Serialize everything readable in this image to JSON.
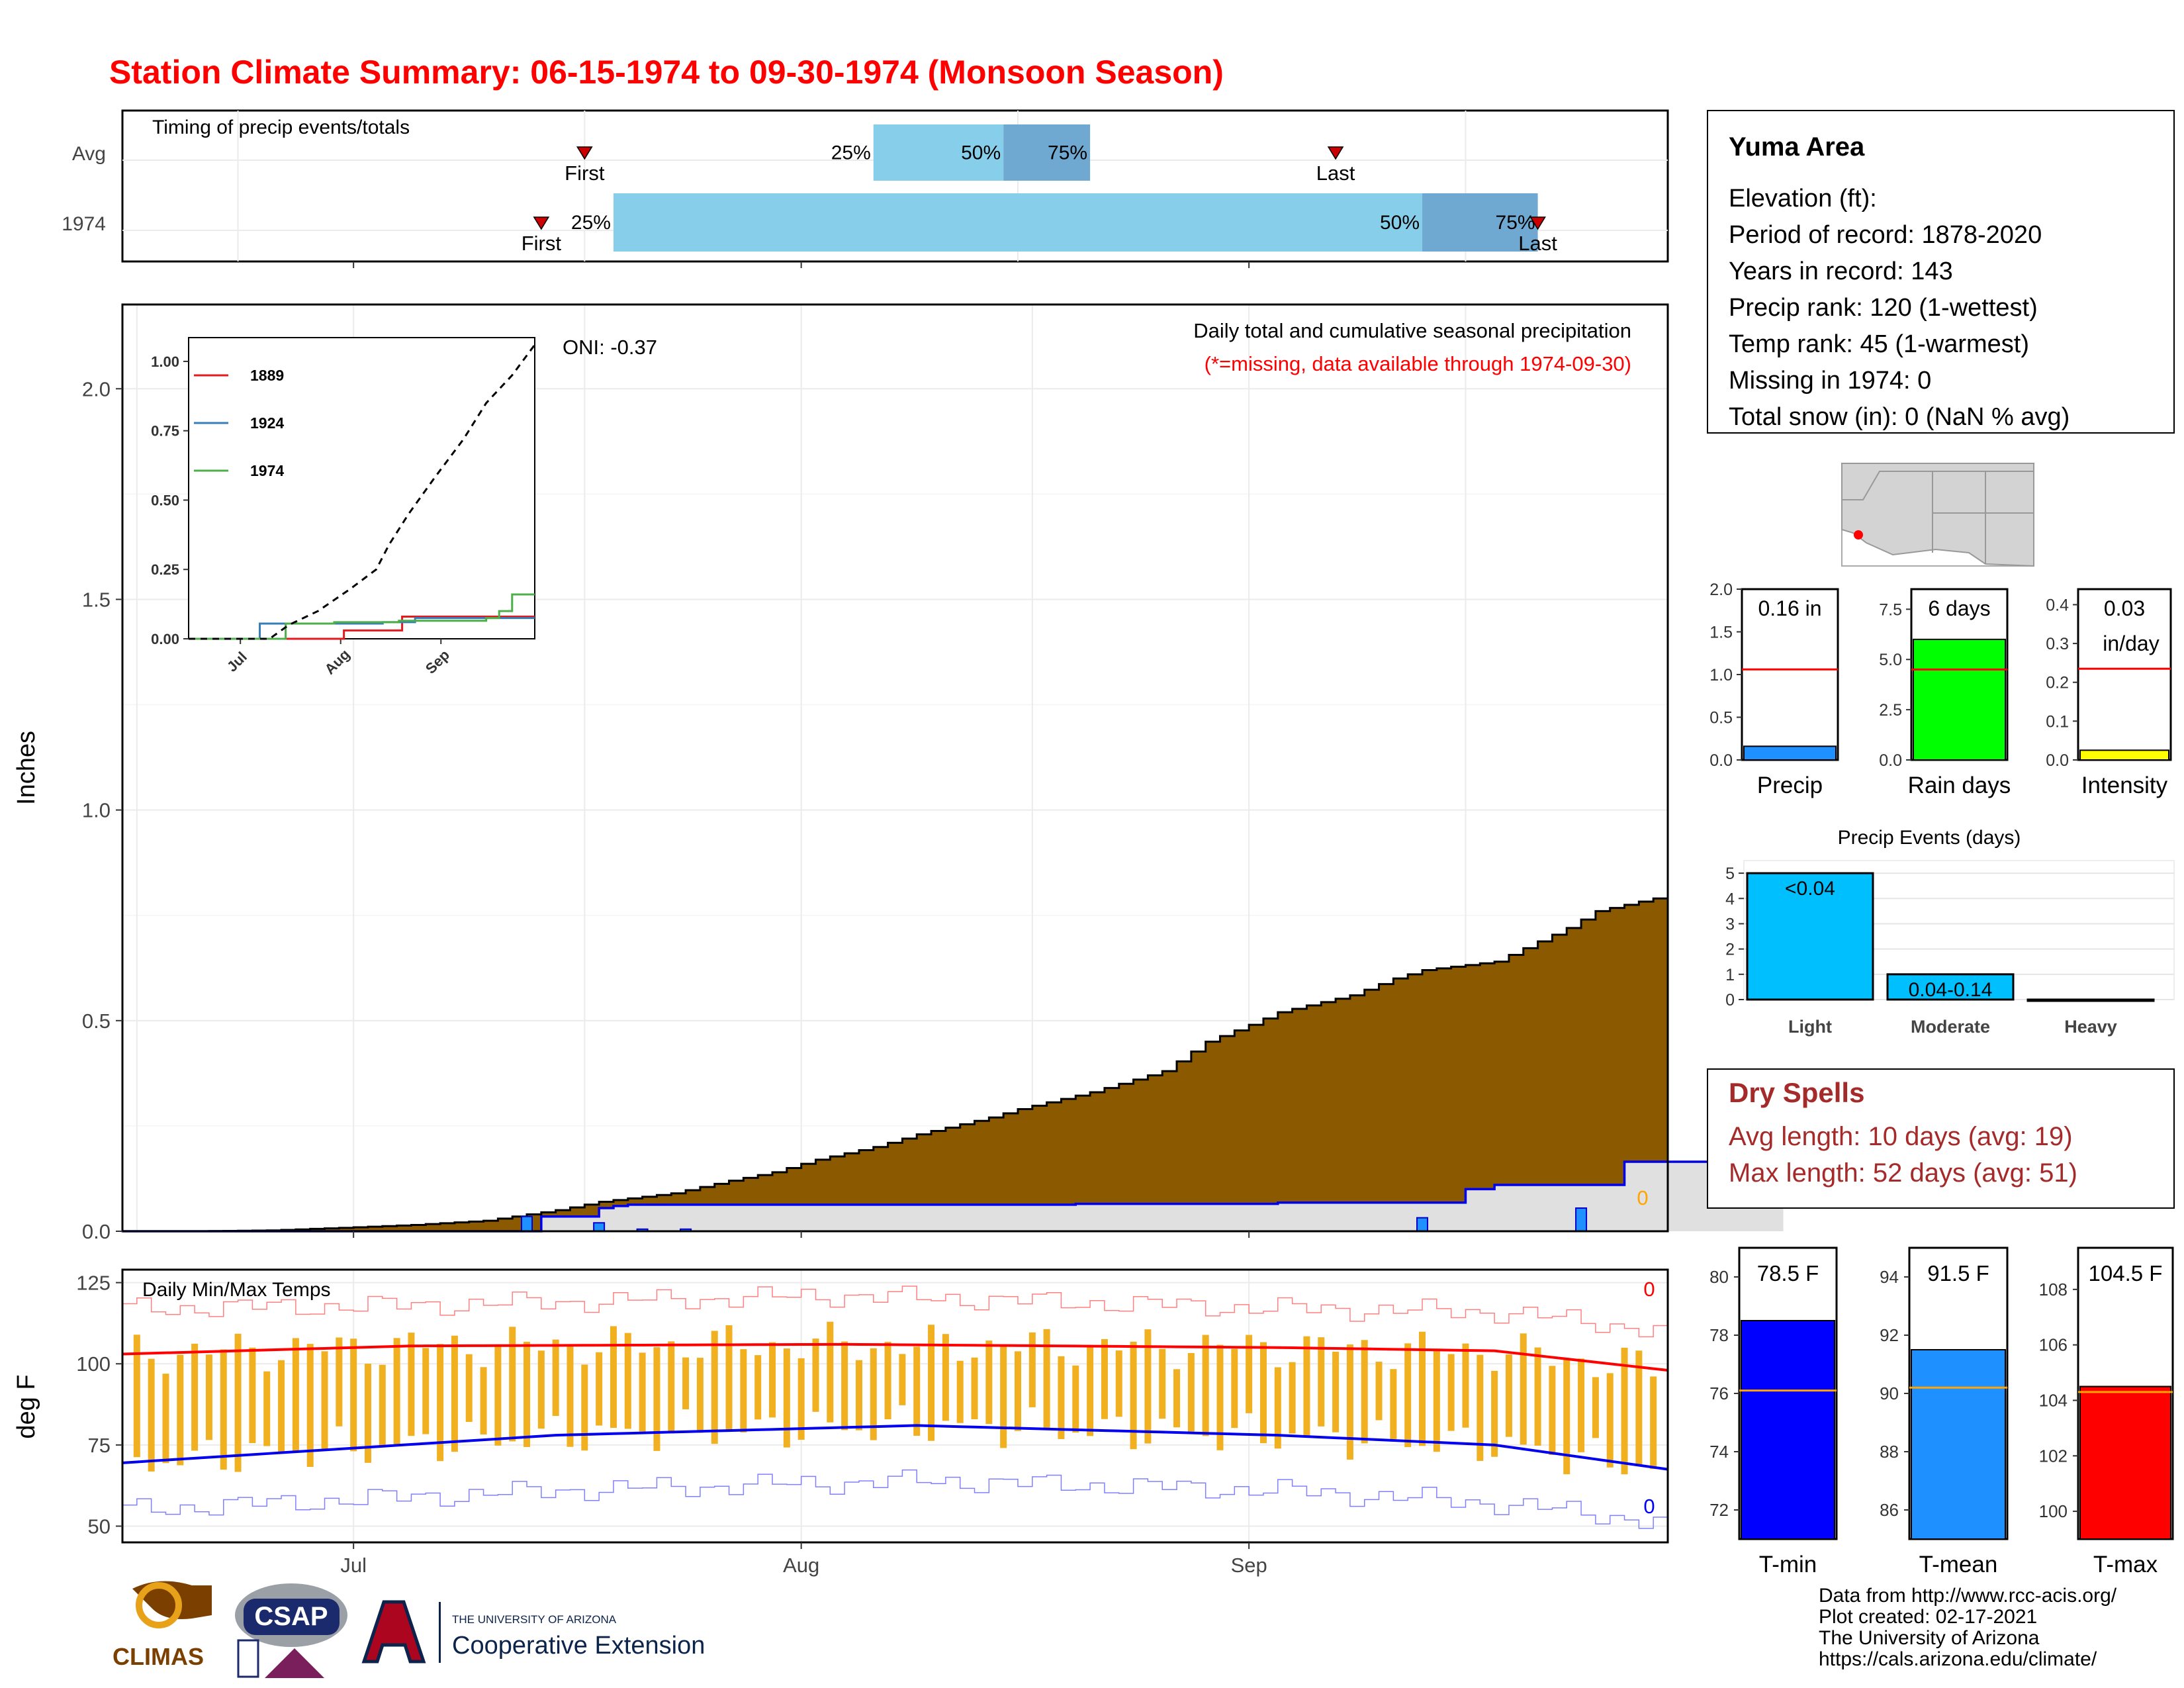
{
  "title": "Station Climate Summary: 06-15-1974 to 09-30-1974 (Monsoon Season)",
  "colors": {
    "title": "#ff0000",
    "brown": "#8B5A00",
    "light_blue": "#87CEEB",
    "mid_blue": "#6FA8D0",
    "orange_bar": "#F0B020",
    "tmax_line": "#ff0000",
    "tmin_line": "#0000ee",
    "dry_spell_text": "#A52A2A",
    "rain_green": "#00ff00",
    "intensity_yellow": "#ffff00",
    "event_cyan": "#00BFFF"
  },
  "x_months": [
    "Jul",
    "Aug",
    "Sep"
  ],
  "timing": {
    "label": "Timing of precip events/totals",
    "rows": [
      "Avg",
      "1974"
    ],
    "avg": {
      "first_day": 32,
      "q25_day": 52,
      "q50_day": 61,
      "q75_day": 67,
      "last_day": 84
    },
    "y1974": {
      "first_day": 29,
      "q25_day": 34,
      "q50_day": 90,
      "q75_day": 98,
      "last_day": 98
    },
    "labels": {
      "first": "First",
      "last": "Last",
      "p25": "25%",
      "p50": "50%",
      "p75": "75%"
    }
  },
  "info": {
    "station": "Yuma Area",
    "lines": [
      "Elevation (ft):",
      "Period of record: 1878-2020",
      "Years in record: 143",
      "Precip rank: 120 (1-wettest)",
      "Temp rank: 45 (1-warmest)",
      "Missing in 1974: 0",
      "Total snow (in): 0 (NaN % avg)"
    ]
  },
  "main": {
    "ylabel": "Inches",
    "header": "Daily total and cumulative seasonal precipitation",
    "subheader": "(*=missing, data available through 1974-09-30)",
    "oni": "ONI: -0.37",
    "zero_label": "0",
    "yticks": [
      "0.0",
      "0.5",
      "1.0",
      "1.5",
      "2.0"
    ]
  },
  "inset": {
    "yticks": [
      "0.00",
      "0.25",
      "0.50",
      "0.75",
      "1.00"
    ],
    "xticks": [
      "Jul",
      "Aug",
      "Sep"
    ],
    "legend": [
      {
        "name": "1889",
        "color": "#e41a1c"
      },
      {
        "name": "1924",
        "color": "#377eb8"
      },
      {
        "name": "1974",
        "color": "#4daf4a"
      }
    ]
  },
  "temps": {
    "label": "Daily Min/Max Temps",
    "ylabel": "deg F",
    "yticks": [
      "50",
      "75",
      "100",
      "125"
    ],
    "max_missing": "0",
    "min_missing": "0"
  },
  "mini_bars": [
    {
      "name": "Precip",
      "value_label": "0.16 in",
      "value": 0.16,
      "avg": 1.06,
      "ymax": 2.0,
      "ticks": [
        "0.0",
        "0.5",
        "1.0",
        "1.5",
        "2.0"
      ],
      "color": "#1E90FF"
    },
    {
      "name": "Rain days",
      "value_label": "6 days",
      "value": 6,
      "avg": 4.5,
      "ymax": 8.5,
      "ticks": [
        "0.0",
        "2.5",
        "5.0",
        "7.5"
      ],
      "color": "#00ff00"
    },
    {
      "name": "Intensity",
      "value_label": "0.03",
      "value_label2": "in/day",
      "value": 0.025,
      "avg": 0.235,
      "ymax": 0.44,
      "ticks": [
        "0.0",
        "0.1",
        "0.2",
        "0.3",
        "0.4"
      ],
      "color": "#ffff00"
    }
  ],
  "events": {
    "title": "Precip Events (days)",
    "categories": [
      "Light",
      "Moderate",
      "Heavy"
    ],
    "values": [
      5,
      1,
      0
    ],
    "labels": [
      "<0.04",
      "0.04-0.14",
      ""
    ],
    "yticks": [
      "0",
      "1",
      "2",
      "3",
      "4",
      "5"
    ]
  },
  "dry_spells": {
    "title": "Dry Spells",
    "avg_line": "Avg length: 10 days (avg: 19)",
    "max_line": "Max length: 52 days (avg: 51)"
  },
  "temp_bars": [
    {
      "name": "T-min",
      "value_label": "78.5 F",
      "value": 78.5,
      "avg": 76.1,
      "ymin": 71,
      "ymax": 81,
      "ticks": [
        "72",
        "74",
        "76",
        "78",
        "80"
      ],
      "color": "#0000ff"
    },
    {
      "name": "T-mean",
      "value_label": "91.5 F",
      "value": 91.5,
      "avg": 90.2,
      "ymin": 85,
      "ymax": 95,
      "ticks": [
        "86",
        "88",
        "90",
        "92",
        "94"
      ],
      "color": "#1E90FF"
    },
    {
      "name": "T-max",
      "value_label": "104.5 F",
      "value": 104.5,
      "avg": 104.3,
      "ymin": 99,
      "ymax": 109.5,
      "ticks": [
        "100",
        "102",
        "104",
        "106",
        "108"
      ],
      "color": "#ff0000"
    }
  ],
  "credits": [
    "Data from http://www.rcc-acis.org/",
    "Plot created: 02-17-2021",
    "The University of Arizona",
    "https://cals.arizona.edu/climate/"
  ],
  "logos": {
    "climas": "CLIMAS",
    "csap": "CSAP",
    "ua_small": "THE UNIVERSITY OF ARIZONA",
    "coop": "Cooperative Extension"
  },
  "chart_data": {
    "type": "area",
    "title": "Station Climate Summary: 06-15-1974 to 09-30-1974 (Monsoon Season)",
    "ylabel": "Inches",
    "ylim": [
      0,
      2.2
    ],
    "x_start": "1974-06-15",
    "x_end": "1974-09-30",
    "avg_cumulative": [
      [
        0,
        0
      ],
      [
        5,
        0
      ],
      [
        10,
        0.002
      ],
      [
        15,
        0.008
      ],
      [
        20,
        0.015
      ],
      [
        25,
        0.025
      ],
      [
        30,
        0.05
      ],
      [
        33,
        0.07
      ],
      [
        38,
        0.09
      ],
      [
        42,
        0.12
      ],
      [
        45,
        0.14
      ],
      [
        48,
        0.17
      ],
      [
        52,
        0.2
      ],
      [
        55,
        0.23
      ],
      [
        60,
        0.27
      ],
      [
        62,
        0.29
      ],
      [
        67,
        0.33
      ],
      [
        70,
        0.36
      ],
      [
        72,
        0.38
      ],
      [
        75,
        0.45
      ],
      [
        78,
        0.49
      ],
      [
        80,
        0.52
      ],
      [
        85,
        0.56
      ],
      [
        88,
        0.6
      ],
      [
        90,
        0.62
      ],
      [
        95,
        0.64
      ],
      [
        100,
        0.72
      ],
      [
        102,
        0.76
      ],
      [
        106,
        0.79
      ],
      [
        110,
        0.83
      ],
      [
        115,
        0.86
      ],
      [
        120,
        0.87
      ],
      [
        122,
        0.9
      ],
      [
        125,
        0.92
      ],
      [
        128,
        0.95
      ],
      [
        132,
        0.99
      ],
      [
        135,
        1.01
      ],
      [
        137,
        1.02
      ],
      [
        138,
        1.06
      ]
    ],
    "observed_1974_cumulative": [
      [
        0,
        0
      ],
      [
        28,
        0
      ],
      [
        29,
        0.035
      ],
      [
        33,
        0.055
      ],
      [
        34,
        0.06
      ],
      [
        35,
        0.063
      ],
      [
        40,
        0.063
      ],
      [
        52,
        0.063
      ],
      [
        66,
        0.065
      ],
      [
        80,
        0.068
      ],
      [
        92,
        0.068
      ],
      [
        93,
        0.1
      ],
      [
        95,
        0.11
      ],
      [
        103,
        0.11
      ],
      [
        104,
        0.165
      ],
      [
        115,
        0.165
      ]
    ],
    "daily_1974": [
      [
        28,
        0.035
      ],
      [
        33,
        0.02
      ],
      [
        36,
        0.005
      ],
      [
        39,
        0.005
      ],
      [
        90,
        0.032
      ],
      [
        101,
        0.055
      ]
    ],
    "inset": {
      "series": [
        {
          "name": "1889",
          "values": [
            [
              0,
              0
            ],
            [
              45,
              0
            ],
            [
              48,
              0.03
            ],
            [
              62,
              0.03
            ],
            [
              66,
              0.08
            ],
            [
              100,
              0.08
            ],
            [
              107,
              0.08
            ]
          ]
        },
        {
          "name": "1924",
          "values": [
            [
              0,
              0
            ],
            [
              20,
              0
            ],
            [
              22,
              0.055
            ],
            [
              45,
              0.055
            ],
            [
              60,
              0.06
            ],
            [
              70,
              0.075
            ],
            [
              107,
              0.075
            ]
          ]
        },
        {
          "name": "1974",
          "values": [
            [
              0,
              0
            ],
            [
              28,
              0
            ],
            [
              30,
              0.055
            ],
            [
              45,
              0.06
            ],
            [
              65,
              0.065
            ],
            [
              92,
              0.075
            ],
            [
              96,
              0.1
            ],
            [
              100,
              0.16
            ],
            [
              107,
              0.16
            ]
          ]
        },
        {
          "name": "avg",
          "values": [
            [
              0,
              0
            ],
            [
              25,
              0
            ],
            [
              31,
              0.05
            ],
            [
              40,
              0.1
            ],
            [
              50,
              0.18
            ],
            [
              58,
              0.25
            ],
            [
              62,
              0.34
            ],
            [
              68,
              0.45
            ],
            [
              76,
              0.58
            ],
            [
              85,
              0.72
            ],
            [
              92,
              0.85
            ],
            [
              100,
              0.95
            ],
            [
              107,
              1.06
            ]
          ]
        }
      ],
      "ylim": [
        0,
        1.05
      ]
    },
    "temps": {
      "tmax_avg": [
        [
          0,
          103
        ],
        [
          20,
          105.5
        ],
        [
          50,
          106
        ],
        [
          80,
          105
        ],
        [
          95,
          104
        ],
        [
          107,
          98
        ]
      ],
      "tmin_avg": [
        [
          0,
          69.5
        ],
        [
          30,
          78
        ],
        [
          55,
          81
        ],
        [
          80,
          78
        ],
        [
          95,
          75
        ],
        [
          107,
          67.5
        ]
      ],
      "record_high": [
        [
          0,
          117
        ],
        [
          20,
          118
        ],
        [
          50,
          121
        ],
        [
          80,
          117
        ],
        [
          95,
          116
        ],
        [
          107,
          110
        ]
      ],
      "record_low": [
        [
          0,
          55
        ],
        [
          30,
          61
        ],
        [
          55,
          64
        ],
        [
          80,
          61
        ],
        [
          95,
          57
        ],
        [
          107,
          51
        ]
      ]
    }
  }
}
